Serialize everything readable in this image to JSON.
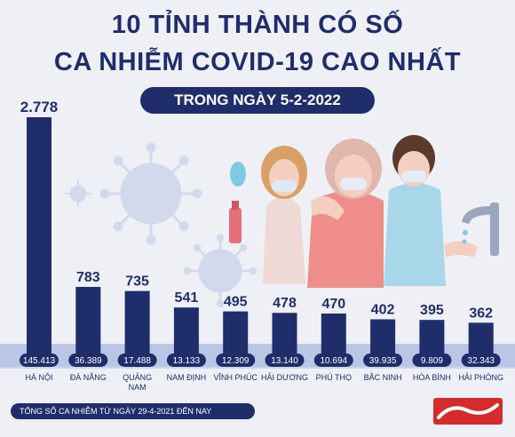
{
  "header": {
    "title_line1": "10 TỈNH THÀNH CÓ SỐ",
    "title_line2": "CA NHIỄM COVID-19 CAO NHẤT",
    "subtitle": "TRONG NGÀY 5-2-2022"
  },
  "footnote": "TỔNG SỐ CA NHIỄM TỪ NGÀY 29-4-2021 ĐẾN NAY",
  "colors": {
    "bar": "#1f2d6b",
    "title": "#1f2d6b",
    "total_pill": "#1f2d6b",
    "axis_band": "#b9c6e6",
    "background": "#eef0f6"
  },
  "chart_data": {
    "type": "bar",
    "categories": [
      "HÀ NỘI",
      "ĐÀ NẴNG",
      "QUẢNG NAM",
      "NAM ĐỊNH",
      "VĨNH PHÚC",
      "HẢI DƯƠNG",
      "PHÚ THỌ",
      "BẮC NINH",
      "HÒA BÌNH",
      "HẢI PHÒNG"
    ],
    "category_lines": [
      [
        "HÀ NỘI"
      ],
      [
        "ĐÀ NẴNG"
      ],
      [
        "QUẢNG",
        "NAM"
      ],
      [
        "NAM ĐỊNH"
      ],
      [
        "VĨNH PHÚC"
      ],
      [
        "HẢI DƯƠNG"
      ],
      [
        "PHÚ THỌ"
      ],
      [
        "BẮC NINH"
      ],
      [
        "HÒA BÌNH"
      ],
      [
        "HẢI PHÒNG"
      ]
    ],
    "series": [
      {
        "values": [
          2778,
          783,
          735,
          541,
          495,
          478,
          470,
          402,
          395,
          362
        ],
        "labels": [
          "2.778",
          "783",
          "735",
          "541",
          "495",
          "478",
          "470",
          "402",
          "395",
          "362"
        ]
      }
    ],
    "totals": [
      145413,
      36389,
      17488,
      13133,
      12309,
      13140,
      10694,
      39935,
      9809,
      32343
    ],
    "total_labels": [
      "145.413",
      "36.389",
      "17.488",
      "13.133",
      "12.309",
      "13.140",
      "10.694",
      "39.935",
      "9.809",
      "32.343"
    ],
    "ylim": [
      0,
      2778
    ],
    "grid": false,
    "legend": "none"
  }
}
